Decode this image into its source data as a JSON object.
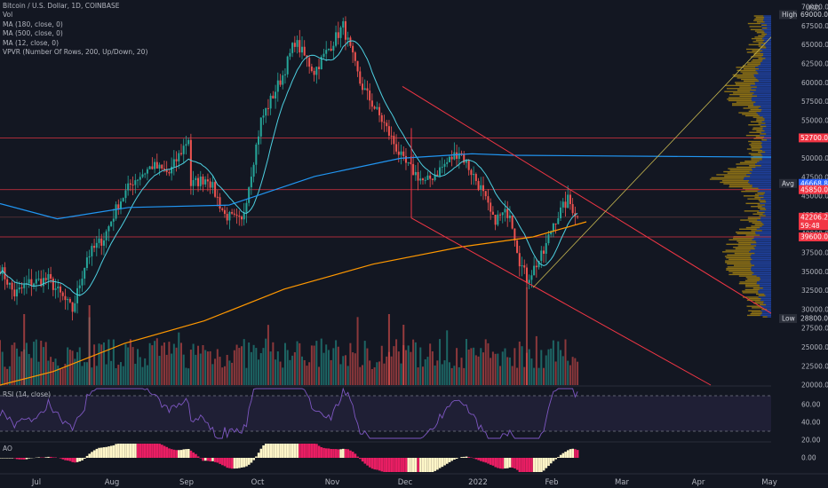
{
  "legend": {
    "title": "Bitcoin / U.S. Dollar, 1D, COINBASE",
    "vol": "Vol",
    "ma180": "MA (180, close, 0)",
    "ma500": "MA (500, close, 0)",
    "ma12": "MA (12, close, 0)",
    "vpvr": "VPVR (Number Of Rows, 200, Up/Down, 20)"
  },
  "rsi_title": "RSI (14, close)",
  "ao_title": "AO",
  "currency": "USD",
  "colors": {
    "background": "#131722",
    "up": "#26a69a",
    "down": "#ef5350",
    "ma180": "#2196f3",
    "ma500": "#ff9800",
    "ma12": "#4dd0e1",
    "rsi": "#7e57c2",
    "trendline": "#f23645",
    "vpvr_up": "#2962ff",
    "vpvr_down": "#f0b90b",
    "ao_up": "#fff6c8",
    "ao_down": "#e91e63"
  },
  "price_axis_ticks": [
    "70000.00",
    "67500.00",
    "65000.00",
    "62500.00",
    "60000.00",
    "57500.00",
    "55000.00",
    "52500.00",
    "50000.00",
    "47500.00",
    "45000.00",
    "42500.00",
    "40000.00",
    "37500.00",
    "35000.00",
    "32500.00",
    "30000.00",
    "27500.00",
    "25000.00",
    "22500.00",
    "20000.00"
  ],
  "price_tags": [
    {
      "label": "High",
      "value": "69000.00"
    },
    {
      "label": "",
      "value": "52700.00"
    },
    {
      "label": "Avg",
      "value": "46668.86"
    },
    {
      "label": "",
      "value": "45850.00"
    },
    {
      "label": "",
      "value": "42206.25"
    },
    {
      "label": "",
      "value": "59:48"
    },
    {
      "label": "",
      "value": "39600.00"
    },
    {
      "label": "Low",
      "value": "28800.00"
    }
  ],
  "rsi_ticks": [
    "60.00",
    "40.00",
    "20.00"
  ],
  "ao_ticks": [
    "0.00"
  ],
  "time_axis": [
    "Jul",
    "Aug",
    "Sep",
    "Oct",
    "Nov",
    "Dec",
    "2022",
    "Feb",
    "Mar",
    "Apr",
    "May"
  ],
  "chart_data": {
    "type": "candlestick",
    "symbol": "Bitcoin / U.S. Dollar",
    "interval": "1D",
    "exchange": "COINBASE",
    "y_range": [
      20000,
      70000
    ],
    "anchors": [
      {
        "date": "Jun 20",
        "close": 35500
      },
      {
        "date": "Jun 26",
        "close": 32000
      },
      {
        "date": "Jul 2",
        "close": 33500
      },
      {
        "date": "Jul 10",
        "close": 34000
      },
      {
        "date": "Jul 20",
        "close": 29900
      },
      {
        "date": "Jul 26",
        "close": 37000
      },
      {
        "date": "Aug 2",
        "close": 39500
      },
      {
        "date": "Aug 8",
        "close": 44000
      },
      {
        "date": "Aug 14",
        "close": 47000
      },
      {
        "date": "Aug 22",
        "close": 49000
      },
      {
        "date": "Aug 29",
        "close": 48000
      },
      {
        "date": "Sep 6",
        "close": 52700
      },
      {
        "date": "Sep 7",
        "close": 46500
      },
      {
        "date": "Sep 14",
        "close": 47500
      },
      {
        "date": "Sep 21",
        "close": 42500
      },
      {
        "date": "Sep 28",
        "close": 41500
      },
      {
        "date": "Oct 6",
        "close": 55000
      },
      {
        "date": "Oct 15",
        "close": 61000
      },
      {
        "date": "Oct 20",
        "close": 65500
      },
      {
        "date": "Oct 28",
        "close": 61500
      },
      {
        "date": "Nov 9",
        "close": 67500
      },
      {
        "date": "Nov 16",
        "close": 60000
      },
      {
        "date": "Nov 26",
        "close": 54500
      },
      {
        "date": "Dec 4",
        "close": 49500
      },
      {
        "date": "Dec 13",
        "close": 46700
      },
      {
        "date": "Dec 27",
        "close": 51000
      },
      {
        "date": "Jan 5",
        "close": 46000
      },
      {
        "date": "Jan 10",
        "close": 41800
      },
      {
        "date": "Jan 17",
        "close": 43000
      },
      {
        "date": "Jan 21",
        "close": 36500
      },
      {
        "date": "Jan 24",
        "close": 34000
      },
      {
        "date": "Jan 31",
        "close": 37500
      },
      {
        "date": "Feb 4",
        "close": 41500
      },
      {
        "date": "Feb 10",
        "close": 44500
      },
      {
        "date": "Feb 14",
        "close": 42206
      }
    ],
    "levels": [
      52700,
      45850,
      42206.25,
      39600
    ],
    "high": 69000,
    "low": 28800,
    "avg": 46668.86,
    "rsi_range": [
      20,
      80
    ],
    "rsi_levels": [
      70,
      30
    ]
  }
}
